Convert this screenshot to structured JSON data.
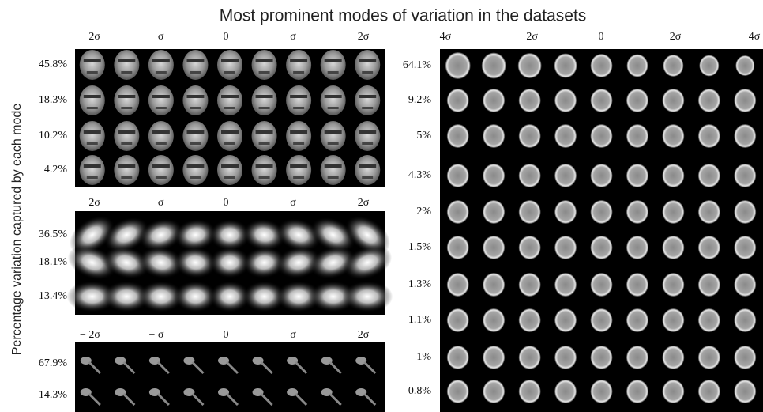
{
  "title": "Most prominent modes of variation in the datasets",
  "y_label": "Percentage variation captured by each mode",
  "panels": [
    {
      "column_labels": [
        "− 2σ",
        "− σ",
        "0",
        "σ",
        "2σ"
      ],
      "row_labels": [
        "45.8%",
        "18.3%",
        "10.2%",
        "4.2%"
      ]
    },
    {
      "column_labels": [
        "− 2σ",
        "− σ",
        "0",
        "σ",
        "2σ"
      ],
      "row_labels": [
        "36.5%",
        "18.1%",
        "13.4%"
      ]
    },
    {
      "column_labels": [
        "− 2σ",
        "− σ",
        "0",
        "σ",
        "2σ"
      ],
      "row_labels": [
        "67.9%",
        "14.3%"
      ]
    },
    {
      "column_labels": [
        "−4σ",
        "− 2σ",
        "0",
        "2σ",
        "4σ"
      ],
      "row_labels": [
        "64.1%",
        "9.2%",
        "5%",
        "4.3%",
        "2%",
        "1.5%",
        "1.3%",
        "1.1%",
        "1%",
        "0.8%"
      ]
    }
  ]
}
